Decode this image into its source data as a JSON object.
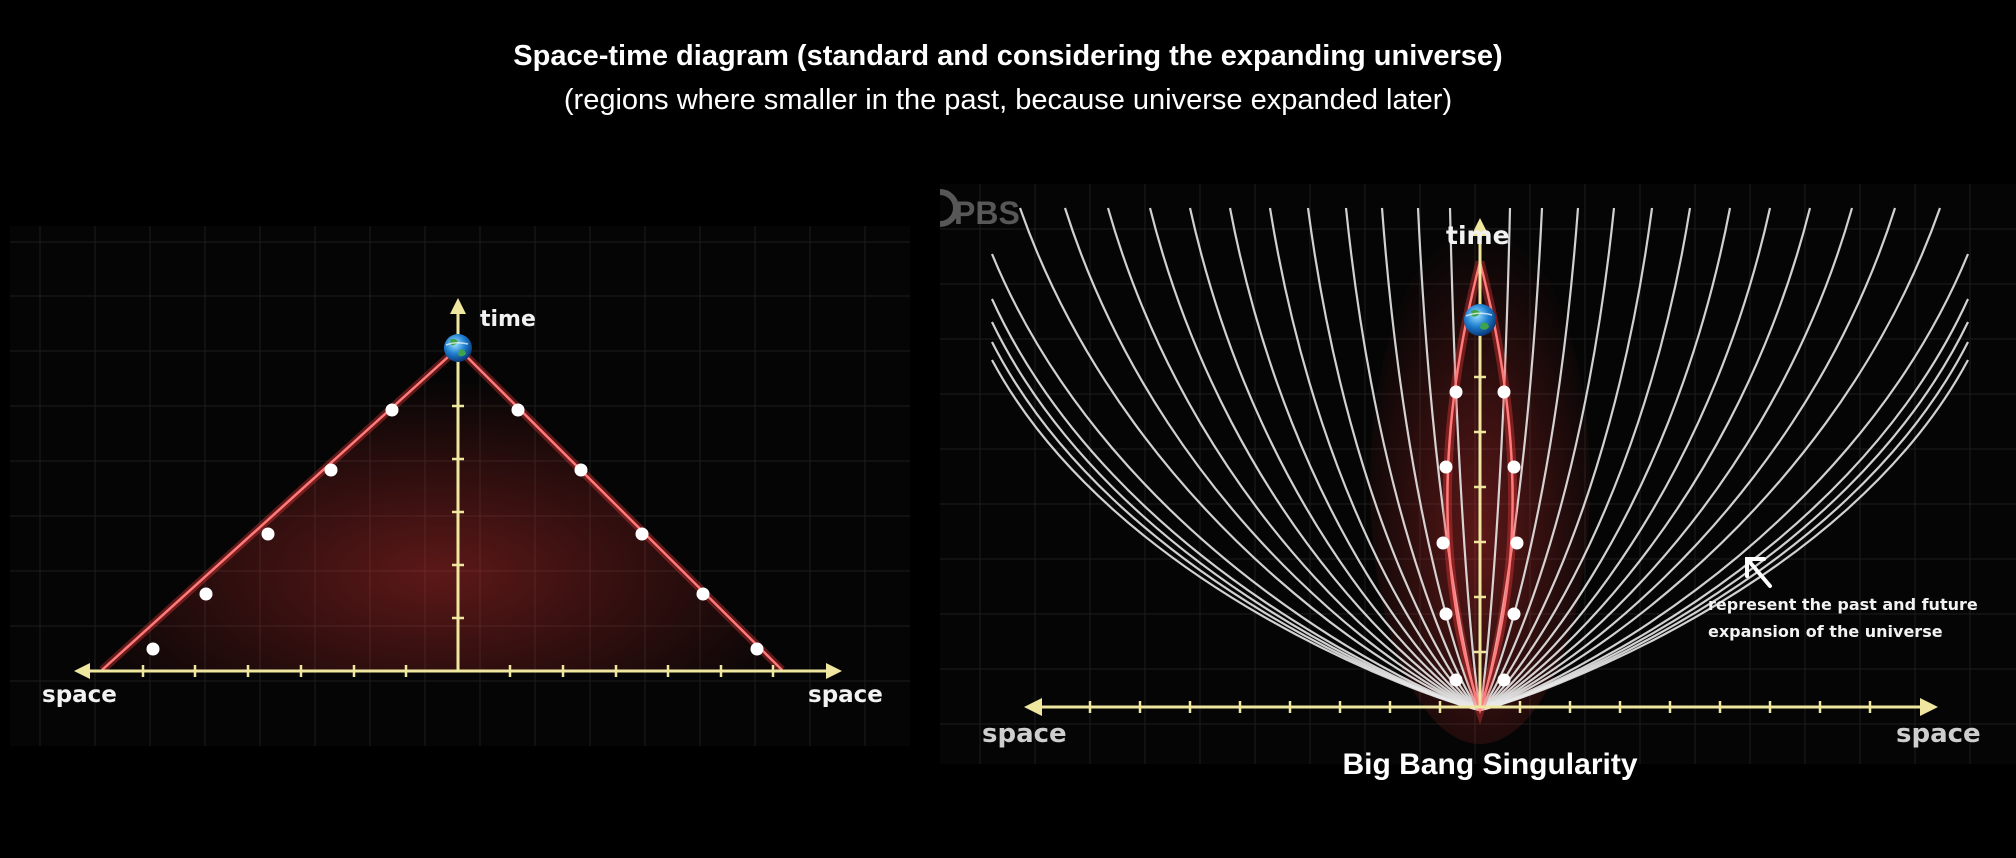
{
  "header": {
    "title": "Space-time diagram (standard and considering the expanding universe)",
    "subtitle": "(regions where smaller in the past, because universe expanded later)"
  },
  "left_diagram": {
    "time_label": "time",
    "space_left_label": "space",
    "space_right_label": "space"
  },
  "right_diagram": {
    "watermark": "PBS",
    "time_label": "time",
    "space_left_label": "space",
    "space_right_label": "space",
    "annotation_line1": "represent the past and future",
    "annotation_line2": "expansion of the universe",
    "caption": "Big Bang Singularity"
  },
  "colors": {
    "axis": "#efe6a0",
    "light_cone": "#ff7a7a",
    "glow": "#ff3b3b",
    "worldlines": "#eeeeee",
    "grid": "#1d1d1d"
  },
  "icons": {
    "observer": "earth-icon",
    "arrow": "arrow-up-left-icon"
  }
}
